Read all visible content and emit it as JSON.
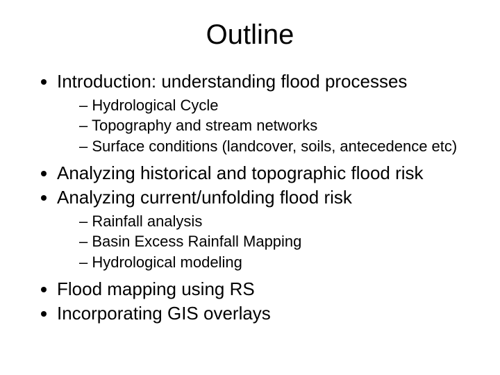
{
  "slide": {
    "title": "Outline",
    "title_fontsize": 40,
    "title_color": "#000000",
    "body_fontsize_l1": 26,
    "body_fontsize_l2": 22,
    "text_color": "#000000",
    "background_color": "#ffffff",
    "font_family": "Arial",
    "bullets": [
      {
        "text": "Introduction: understanding flood processes",
        "sub": [
          "Hydrological Cycle",
          "Topography and stream networks",
          "Surface conditions (landcover, soils, antecedence etc)"
        ]
      },
      {
        "text": "Analyzing historical and topographic flood risk",
        "sub": []
      },
      {
        "text": "Analyzing current/unfolding flood risk",
        "sub": [
          "Rainfall analysis",
          "Basin Excess Rainfall Mapping",
          "Hydrological modeling"
        ]
      },
      {
        "text": "Flood mapping using RS",
        "sub": []
      },
      {
        "text": "Incorporating GIS overlays",
        "sub": []
      }
    ]
  }
}
